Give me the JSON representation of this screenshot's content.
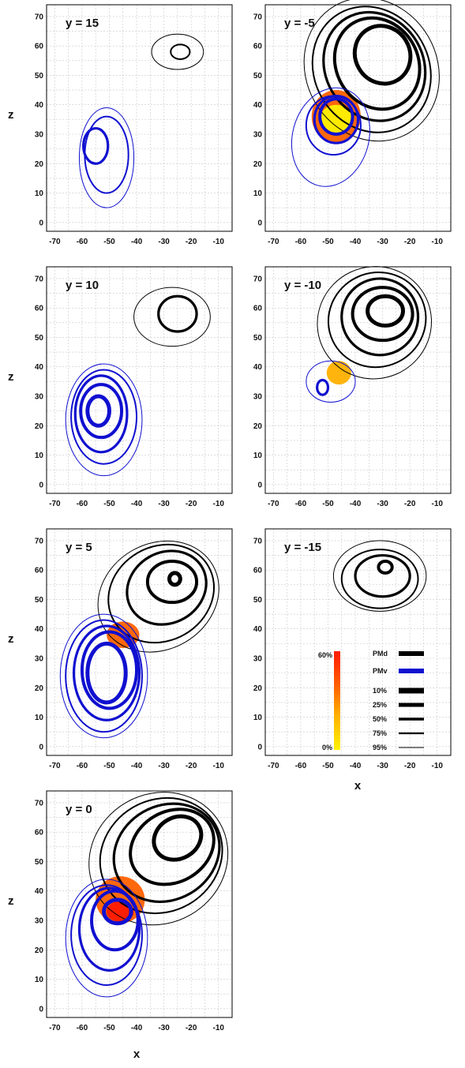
{
  "chart_data": {
    "type": "contour",
    "x_ticks": [
      "-70",
      "-60",
      "-50",
      "-40",
      "-30",
      "-20",
      "-10"
    ],
    "z_ticks": [
      "0",
      "10",
      "20",
      "30",
      "40",
      "50",
      "60",
      "70"
    ],
    "xlim": [
      -73,
      -5
    ],
    "zlim": [
      -3,
      74
    ],
    "xlabel": "x",
    "ylabel": "z",
    "grid": true,
    "series_colors": {
      "PMd": "#000000",
      "PMv": "#1010d0"
    },
    "legend": {
      "areas": [
        {
          "label": "PMd",
          "color": "#000000"
        },
        {
          "label": "PMv",
          "color": "#1010d0"
        }
      ],
      "levels": [
        {
          "label": "10%",
          "width": 7
        },
        {
          "label": "25%",
          "width": 5
        },
        {
          "label": "50%",
          "width": 3.6
        },
        {
          "label": "75%",
          "width": 2.2
        },
        {
          "label": "95%",
          "width": 1.1
        }
      ],
      "colorbar": {
        "max_label": "60%",
        "min_label": "0%",
        "colors": [
          "#fff200",
          "#ffb000",
          "#ff6000",
          "#ff1a00"
        ]
      }
    },
    "panels": [
      {
        "id": "y15",
        "title": "y = 15",
        "contours": [
          {
            "area": "PMd",
            "level": "95%",
            "cx": -25,
            "cz": 58,
            "rx": 9.5,
            "rz": 6
          },
          {
            "area": "PMd",
            "level": "75%",
            "cx": -24,
            "cz": 58,
            "rx": 3.5,
            "rz": 2.5
          },
          {
            "area": "PMv",
            "level": "95%",
            "cx": -51,
            "cz": 22,
            "rx": 10,
            "rz": 17
          },
          {
            "area": "PMv",
            "level": "75%",
            "cx": -51,
            "cz": 23,
            "rx": 8,
            "rz": 13
          },
          {
            "area": "PMv",
            "level": "50%",
            "cx": -55,
            "cz": 26,
            "rx": 4.5,
            "rz": 6
          }
        ],
        "overlap": []
      },
      {
        "id": "y-5",
        "title": "y = -5",
        "contours": [
          {
            "area": "PMd",
            "level": "95%",
            "cx": -34,
            "cz": 52,
            "rx": 24,
            "rz": 25,
            "rot": -30
          },
          {
            "area": "PMd",
            "level": "75%",
            "cx": -34,
            "cz": 52,
            "rx": 21,
            "rz": 22,
            "rot": -30
          },
          {
            "area": "PMd",
            "level": "50%",
            "cx": -33,
            "cz": 53,
            "rx": 18,
            "rz": 19,
            "rot": -30
          },
          {
            "area": "PMd",
            "level": "25%",
            "cx": -32,
            "cz": 54,
            "rx": 15,
            "rz": 16,
            "rot": -30
          },
          {
            "area": "PMd",
            "level": "10%",
            "cx": -30,
            "cz": 57,
            "rx": 10,
            "rz": 10,
            "rot": -30
          },
          {
            "area": "PMv",
            "level": "95%",
            "cx": -49,
            "cz": 29,
            "rx": 14,
            "rz": 17,
            "rot": 15
          },
          {
            "area": "PMv",
            "level": "75%",
            "cx": -48,
            "cz": 33,
            "rx": 10,
            "rz": 10
          },
          {
            "area": "PMv",
            "level": "50%",
            "cx": -47,
            "cz": 35,
            "rx": 8,
            "rz": 8
          },
          {
            "area": "PMv",
            "level": "25%",
            "cx": -47,
            "cz": 36,
            "rx": 6,
            "rz": 6
          }
        ],
        "overlap": [
          {
            "cx": -47,
            "cz": 36,
            "rx": 9,
            "rz": 9,
            "value": 30
          },
          {
            "cx": -47,
            "cz": 35,
            "rx": 6,
            "rz": 5,
            "value": 5
          }
        ]
      },
      {
        "id": "y10",
        "title": "y = 10",
        "contours": [
          {
            "area": "PMd",
            "level": "95%",
            "cx": -27,
            "cz": 57,
            "rx": 14,
            "rz": 10
          },
          {
            "area": "PMd",
            "level": "50%",
            "cx": -25,
            "cz": 58,
            "rx": 7,
            "rz": 6
          },
          {
            "area": "PMv",
            "level": "95%",
            "cx": -52,
            "cz": 22,
            "rx": 14,
            "rz": 19
          },
          {
            "area": "PMv",
            "level": "75%",
            "cx": -52,
            "cz": 23,
            "rx": 12,
            "rz": 16
          },
          {
            "area": "PMv",
            "level": "50%",
            "cx": -53,
            "cz": 24,
            "rx": 9.5,
            "rz": 13
          },
          {
            "area": "PMv",
            "level": "25%",
            "cx": -53,
            "cz": 25,
            "rx": 7.5,
            "rz": 9
          },
          {
            "area": "PMv",
            "level": "10%",
            "cx": -54,
            "cz": 25,
            "rx": 4,
            "rz": 5
          }
        ],
        "overlap": []
      },
      {
        "id": "y-10",
        "title": "y = -10",
        "contours": [
          {
            "area": "PMd",
            "level": "95%",
            "cx": -33,
            "cz": 55,
            "rx": 21,
            "rz": 19,
            "rot": -25
          },
          {
            "area": "PMd",
            "level": "75%",
            "cx": -32,
            "cz": 56,
            "rx": 18,
            "rz": 16,
            "rot": -25
          },
          {
            "area": "PMd",
            "level": "50%",
            "cx": -31,
            "cz": 57,
            "rx": 14,
            "rz": 13,
            "rot": -20
          },
          {
            "area": "PMd",
            "level": "25%",
            "cx": -30,
            "cz": 58,
            "rx": 11,
            "rz": 9
          },
          {
            "area": "PMd",
            "level": "10%",
            "cx": -29,
            "cz": 59,
            "rx": 6.5,
            "rz": 5
          },
          {
            "area": "PMv",
            "level": "95%",
            "cx": -49,
            "cz": 35,
            "rx": 9,
            "rz": 7
          },
          {
            "area": "PMv",
            "level": "50%",
            "cx": -52,
            "cz": 33,
            "rx": 2,
            "rz": 2.5
          }
        ],
        "overlap": [
          {
            "cx": -46,
            "cz": 38,
            "rx": 4.5,
            "rz": 4,
            "value": 25
          }
        ]
      },
      {
        "id": "y5",
        "title": "y = 5",
        "contours": [
          {
            "area": "PMd",
            "level": "95%",
            "cx": -32,
            "cz": 51,
            "rx": 23,
            "rz": 18,
            "rot": -30
          },
          {
            "area": "PMd",
            "level": "75%",
            "cx": -31,
            "cz": 52,
            "rx": 20,
            "rz": 16,
            "rot": -30
          },
          {
            "area": "PMd",
            "level": "50%",
            "cx": -29,
            "cz": 54,
            "rx": 15,
            "rz": 12,
            "rot": -30
          },
          {
            "area": "PMd",
            "level": "25%",
            "cx": -27,
            "cz": 56,
            "rx": 9,
            "rz": 7
          },
          {
            "area": "PMd",
            "level": "10%",
            "cx": -26,
            "cz": 57,
            "rx": 2,
            "rz": 2
          },
          {
            "area": "PMv",
            "level": "95%",
            "cx": -52,
            "cz": 24,
            "rx": 16,
            "rz": 21
          },
          {
            "area": "PMv",
            "level": "75%",
            "cx": -52,
            "cz": 24,
            "rx": 14,
            "rz": 19
          },
          {
            "area": "PMv",
            "level": "50%",
            "cx": -51,
            "cz": 25,
            "rx": 12,
            "rz": 16
          },
          {
            "area": "PMv",
            "level": "25%",
            "cx": -50,
            "cz": 26,
            "rx": 10,
            "rz": 13
          },
          {
            "area": "PMv",
            "level": "10%",
            "cx": -51,
            "cz": 25,
            "rx": 7,
            "rz": 10
          }
        ],
        "overlap": [
          {
            "cx": -45,
            "cz": 38,
            "rx": 6,
            "rz": 4.5,
            "value": 35
          }
        ]
      },
      {
        "id": "y-15",
        "title": "y = -15",
        "contours": [
          {
            "area": "PMd",
            "level": "95%",
            "cx": -31,
            "cz": 58,
            "rx": 17,
            "rz": 12
          },
          {
            "area": "PMd",
            "level": "75%",
            "cx": -31,
            "cz": 57,
            "rx": 14,
            "rz": 10
          },
          {
            "area": "PMd",
            "level": "50%",
            "cx": -30,
            "cz": 58,
            "rx": 10,
            "rz": 7
          },
          {
            "area": "PMd",
            "level": "25%",
            "cx": -29,
            "cz": 61,
            "rx": 2.5,
            "rz": 2
          }
        ],
        "overlap": [],
        "show_legend": true
      },
      {
        "id": "y0",
        "title": "y = 0",
        "contours": [
          {
            "area": "PMd",
            "level": "95%",
            "cx": -32,
            "cz": 51,
            "rx": 26,
            "rz": 22,
            "rot": -30
          },
          {
            "area": "PMd",
            "level": "75%",
            "cx": -31,
            "cz": 52,
            "rx": 23,
            "rz": 19,
            "rot": -30
          },
          {
            "area": "PMd",
            "level": "50%",
            "cx": -29,
            "cz": 53,
            "rx": 20,
            "rz": 16,
            "rot": -30
          },
          {
            "area": "PMd",
            "level": "25%",
            "cx": -27,
            "cz": 55,
            "rx": 16,
            "rz": 12,
            "rot": -30
          },
          {
            "area": "PMd",
            "level": "10%",
            "cx": -25,
            "cz": 58,
            "rx": 9,
            "rz": 7,
            "rot": -30
          },
          {
            "area": "PMv",
            "level": "95%",
            "cx": -51,
            "cz": 24,
            "rx": 15,
            "rz": 20
          },
          {
            "area": "PMv",
            "level": "75%",
            "cx": -51,
            "cz": 25,
            "rx": 13,
            "rz": 17
          },
          {
            "area": "PMv",
            "level": "50%",
            "cx": -50,
            "cz": 27,
            "rx": 11,
            "rz": 14
          },
          {
            "area": "PMv",
            "level": "25%",
            "cx": -48,
            "cz": 30,
            "rx": 8.5,
            "rz": 10
          },
          {
            "area": "PMv",
            "level": "10%",
            "cx": -47,
            "cz": 33,
            "rx": 5,
            "rz": 4
          }
        ],
        "overlap": [
          {
            "cx": -46,
            "cz": 37,
            "rx": 9,
            "rz": 8,
            "value": 40
          },
          {
            "cx": -46,
            "cz": 33,
            "rx": 5,
            "rz": 3.5,
            "value": 60
          }
        ]
      }
    ]
  }
}
